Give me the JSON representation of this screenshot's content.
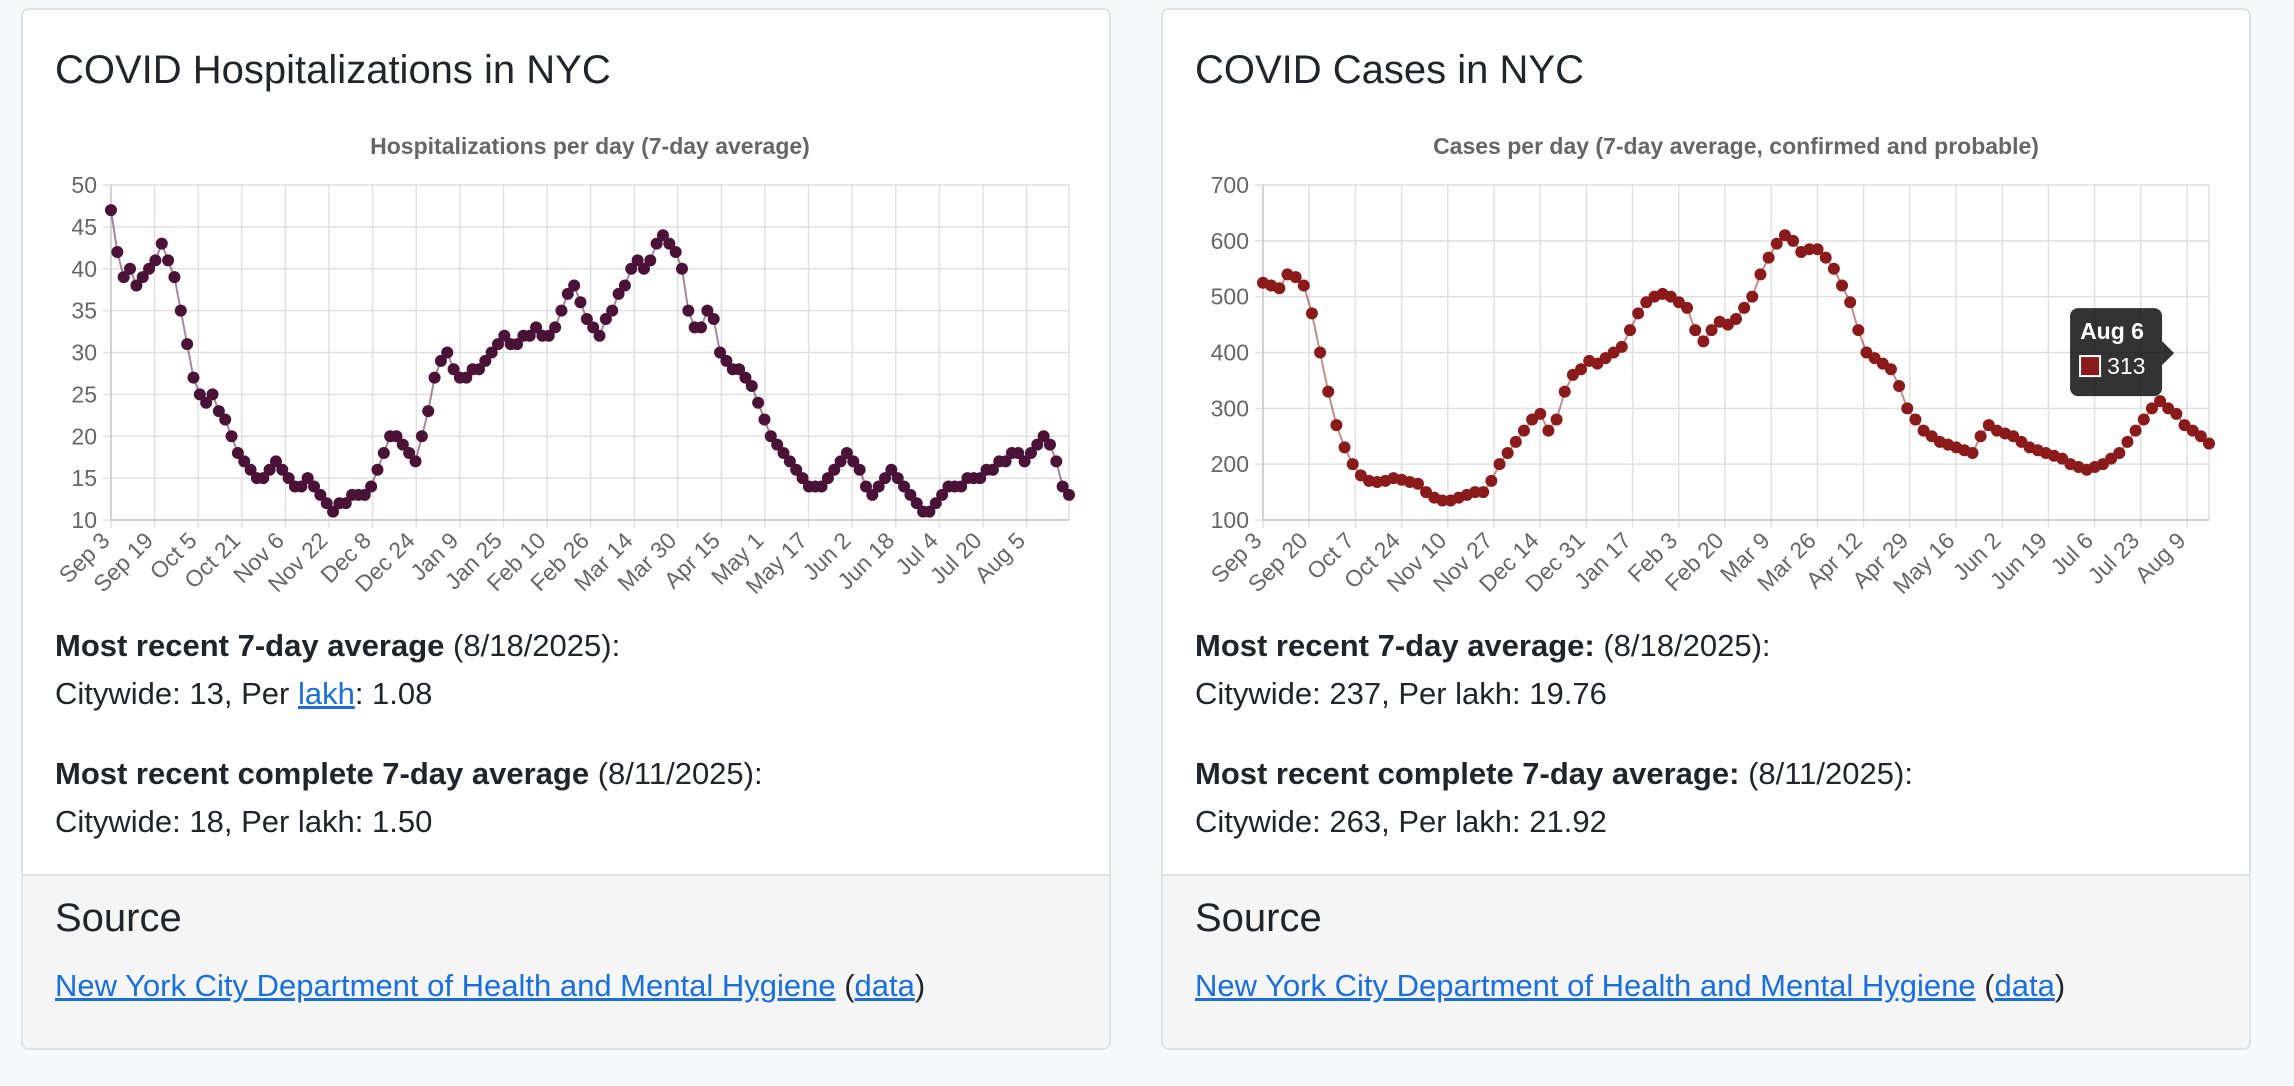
{
  "hospitalizations": {
    "title": "COVID Hospitalizations in NYC",
    "recent_label": "Most recent 7-day average",
    "recent_date": "(8/18/2025):",
    "recent_citywide_prefix": "Citywide: 13, Per ",
    "recent_lakh_link": "lakh",
    "recent_per_suffix": ": 1.08",
    "complete_label": "Most recent complete 7-day average",
    "complete_date": "(8/11/2025):",
    "complete_values": "Citywide: 18, Per lakh: 1.50"
  },
  "cases": {
    "title": "COVID Cases in NYC",
    "recent_label": "Most recent 7-day average:",
    "recent_date": "(8/18/2025):",
    "recent_values": "Citywide: 237, Per lakh: 19.76",
    "complete_label": "Most recent complete 7-day average:",
    "complete_date": "(8/11/2025):",
    "complete_values": "Citywide: 263, Per lakh: 21.92",
    "tooltip": {
      "date": "Aug 6",
      "value": "313"
    }
  },
  "source": {
    "heading": "Source",
    "link_text": "New York City Department of Health and Mental Hygiene",
    "open_paren": "(",
    "data_link": "data",
    "close_paren": ")"
  },
  "colors": {
    "hosp_series": "#4a1236",
    "cases_series": "#8b1a1a",
    "link": "#1a6fe0",
    "grid": "#e0e0e0"
  },
  "chart_data": [
    {
      "type": "scatter",
      "title": "Hospitalizations per day (7-day average)",
      "xlabel": "",
      "ylabel": "",
      "ylim": [
        10,
        50
      ],
      "yticks": [
        10,
        15,
        20,
        25,
        30,
        35,
        40,
        45,
        50
      ],
      "xticks": [
        "Sep 3",
        "Sep 19",
        "Oct 5",
        "Oct 21",
        "Nov 6",
        "Nov 22",
        "Dec 8",
        "Dec 24",
        "Jan 9",
        "Jan 25",
        "Feb 10",
        "Feb 26",
        "Mar 14",
        "Mar 30",
        "Apr 15",
        "May 1",
        "May 17",
        "Jun 2",
        "Jun 18",
        "Jul 4",
        "Jul 20",
        "Aug 5"
      ],
      "grid": true,
      "series": [
        {
          "color": "#4a1236",
          "x_start": "Sep 3",
          "x_end": "Aug 18",
          "values": [
            47,
            42,
            39,
            40,
            38,
            39,
            40,
            41,
            43,
            41,
            39,
            35,
            31,
            27,
            25,
            24,
            25,
            23,
            22,
            20,
            18,
            17,
            16,
            15,
            15,
            16,
            17,
            16,
            15,
            14,
            14,
            15,
            14,
            13,
            12,
            11,
            12,
            12,
            13,
            13,
            13,
            14,
            16,
            18,
            20,
            20,
            19,
            18,
            17,
            20,
            23,
            27,
            29,
            30,
            28,
            27,
            27,
            28,
            28,
            29,
            30,
            31,
            32,
            31,
            31,
            32,
            32,
            33,
            32,
            32,
            33,
            35,
            37,
            38,
            36,
            34,
            33,
            32,
            34,
            35,
            37,
            38,
            40,
            41,
            40,
            41,
            43,
            44,
            43,
            42,
            40,
            35,
            33,
            33,
            35,
            34,
            30,
            29,
            28,
            28,
            27,
            26,
            24,
            22,
            20,
            19,
            18,
            17,
            16,
            15,
            14,
            14,
            14,
            15,
            16,
            17,
            18,
            17,
            16,
            14,
            13,
            14,
            15,
            16,
            15,
            14,
            13,
            12,
            11,
            11,
            12,
            13,
            14,
            14,
            14,
            15,
            15,
            15,
            16,
            16,
            17,
            17,
            18,
            18,
            17,
            18,
            19,
            20,
            19,
            17,
            14,
            13
          ]
        }
      ]
    },
    {
      "type": "scatter",
      "title": "Cases per day (7-day average, confirmed and probable)",
      "xlabel": "",
      "ylabel": "",
      "ylim": [
        100,
        700
      ],
      "yticks": [
        100,
        200,
        300,
        400,
        500,
        600,
        700
      ],
      "xticks": [
        "Sep 3",
        "Sep 20",
        "Oct 7",
        "Oct 24",
        "Nov 10",
        "Nov 27",
        "Dec 14",
        "Dec 31",
        "Jan 17",
        "Feb 3",
        "Feb 20",
        "Mar 9",
        "Mar 26",
        "Apr 12",
        "Apr 29",
        "May 16",
        "Jun 2",
        "Jun 19",
        "Jul 6",
        "Jul 23",
        "Aug 9"
      ],
      "grid": true,
      "series": [
        {
          "color": "#8b1a1a",
          "x_start": "Sep 3",
          "x_end": "Aug 18",
          "values": [
            525,
            520,
            515,
            540,
            535,
            520,
            470,
            400,
            330,
            270,
            230,
            200,
            180,
            170,
            168,
            170,
            175,
            172,
            168,
            165,
            150,
            140,
            135,
            135,
            140,
            145,
            150,
            150,
            170,
            200,
            220,
            240,
            260,
            280,
            290,
            260,
            280,
            330,
            360,
            370,
            385,
            380,
            390,
            400,
            410,
            440,
            470,
            490,
            500,
            505,
            500,
            490,
            480,
            440,
            420,
            440,
            455,
            450,
            460,
            480,
            500,
            540,
            570,
            595,
            610,
            600,
            580,
            585,
            585,
            570,
            550,
            520,
            490,
            440,
            400,
            390,
            380,
            370,
            340,
            300,
            280,
            260,
            250,
            240,
            235,
            230,
            225,
            220,
            250,
            270,
            260,
            255,
            250,
            240,
            230,
            225,
            220,
            215,
            210,
            200,
            195,
            190,
            195,
            200,
            210,
            220,
            240,
            260,
            280,
            300,
            313,
            300,
            290,
            270,
            260,
            250,
            237
          ]
        }
      ]
    }
  ]
}
